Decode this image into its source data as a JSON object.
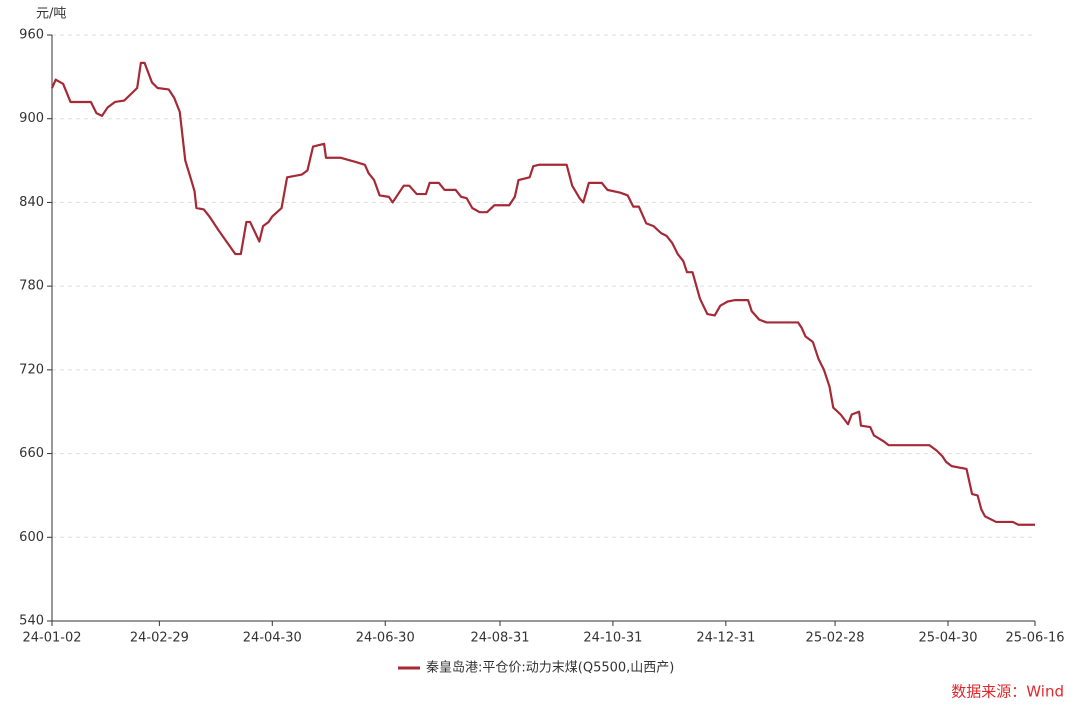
{
  "chart_data": {
    "type": "line",
    "y_label": "元/吨",
    "source": "数据来源：Wind",
    "x": [
      "24-01-02",
      "24-01-04",
      "24-01-08",
      "24-01-12",
      "24-01-23",
      "24-01-26",
      "24-01-29",
      "24-02-01",
      "24-02-05",
      "24-02-10",
      "24-02-17",
      "24-02-19",
      "24-02-21",
      "24-02-25",
      "24-02-28",
      "24-03-05",
      "24-03-08",
      "24-03-11",
      "24-03-14",
      "24-03-17",
      "24-03-19",
      "24-03-20",
      "24-03-24",
      "24-03-27",
      "24-04-01",
      "24-04-10",
      "24-04-13",
      "24-04-16",
      "24-04-18",
      "24-04-23",
      "24-04-25",
      "24-04-28",
      "24-04-30",
      "24-05-05",
      "24-05-08",
      "24-05-16",
      "24-05-19",
      "24-05-22",
      "24-05-28",
      "24-05-29",
      "24-06-06",
      "24-06-14",
      "24-06-19",
      "24-06-21",
      "24-06-24",
      "24-06-27",
      "24-07-02",
      "24-07-04",
      "24-07-10",
      "24-07-13",
      "24-07-17",
      "24-07-22",
      "24-07-24",
      "24-07-29",
      "24-08-01",
      "24-08-07",
      "24-08-10",
      "24-08-13",
      "24-08-16",
      "24-08-20",
      "24-08-24",
      "24-08-28",
      "24-09-05",
      "24-09-08",
      "24-09-10",
      "24-09-16",
      "24-09-18",
      "24-09-21",
      "24-10-06",
      "24-10-09",
      "24-10-13",
      "24-10-15",
      "24-10-18",
      "24-10-25",
      "24-10-28",
      "24-11-04",
      "24-11-08",
      "24-11-11",
      "24-11-14",
      "24-11-18",
      "24-11-22",
      "24-11-26",
      "24-11-29",
      "24-12-02",
      "24-12-05",
      "24-12-08",
      "24-12-10",
      "24-12-13",
      "24-12-17",
      "24-12-21",
      "24-12-25",
      "24-12-28",
      "25-01-01",
      "25-01-05",
      "25-01-12",
      "25-01-14",
      "25-01-18",
      "25-01-22",
      "25-02-08",
      "25-02-10",
      "25-02-12",
      "25-02-16",
      "25-02-19",
      "25-02-22",
      "25-02-25",
      "25-02-27",
      "25-03-03",
      "25-03-07",
      "25-03-09",
      "25-03-13",
      "25-03-14",
      "25-03-19",
      "25-03-21",
      "25-03-26",
      "25-03-29",
      "25-04-20",
      "25-04-24",
      "25-04-27",
      "25-04-29",
      "25-05-02",
      "25-05-10",
      "25-05-13",
      "25-05-16",
      "25-05-18",
      "25-05-20",
      "25-05-26",
      "25-06-04",
      "25-06-07",
      "25-06-16"
    ],
    "series": [
      {
        "name": "秦皇岛港:平仓价:动力末煤(Q5500,山西产)",
        "color": "#a52a36",
        "values": [
          922,
          928,
          925,
          912,
          912,
          904,
          902,
          908,
          912,
          913,
          922,
          940,
          940,
          926,
          922,
          921,
          915,
          905,
          870,
          857,
          848,
          836,
          835,
          830,
          820,
          803,
          803,
          826,
          826,
          812,
          823,
          826,
          830,
          836,
          858,
          860,
          863,
          880,
          882,
          872,
          872,
          869,
          867,
          861,
          856,
          845,
          844,
          840,
          852,
          852,
          846,
          846,
          854,
          854,
          849,
          849,
          844,
          843,
          836,
          833,
          833,
          838,
          838,
          844,
          856,
          858,
          866,
          867,
          867,
          852,
          843,
          840,
          854,
          854,
          849,
          847,
          845,
          837,
          837,
          825,
          823,
          818,
          816,
          811,
          803,
          798,
          790,
          790,
          771,
          760,
          759,
          766,
          769,
          770,
          770,
          762,
          756,
          754,
          754,
          750,
          744,
          740,
          728,
          720,
          708,
          693,
          688,
          681,
          688,
          690,
          680,
          679,
          673,
          669,
          666,
          666,
          662,
          658,
          654,
          651,
          649,
          631,
          630,
          620,
          615,
          611,
          611,
          609,
          609
        ]
      }
    ],
    "xlim": [
      "24-01-02",
      "25-06-16"
    ],
    "xticks": [
      "24-01-02",
      "24-02-29",
      "24-04-30",
      "24-06-30",
      "24-08-31",
      "24-10-31",
      "24-12-31",
      "25-02-28",
      "25-04-30",
      "25-06-16"
    ],
    "ylim": [
      540,
      960
    ],
    "yticks": [
      540,
      600,
      660,
      720,
      780,
      840,
      900,
      960
    ],
    "grid": true
  }
}
